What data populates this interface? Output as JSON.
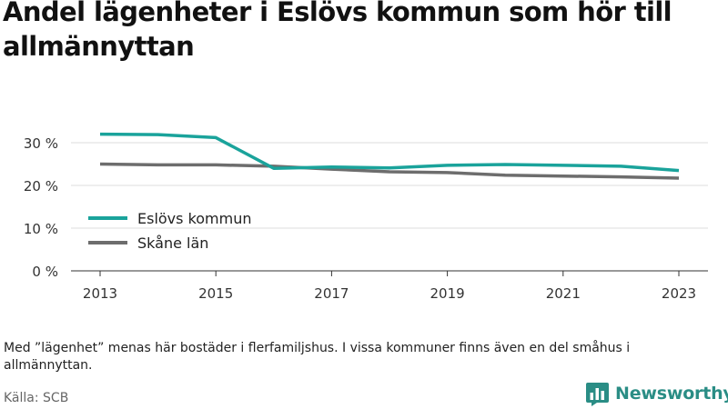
{
  "title": "Andel lägenheter i Eslövs kommun som hör till allmännyttan",
  "note": "Med ”lägenhet” menas här bostäder i flerfamiljshus. I vissa kommuner finns även en del småhus i allmännyttan.",
  "source": "Källa: SCB",
  "brand": {
    "name": "Newsworthy",
    "icon": "newsworthy-logo-icon",
    "color": "#2a8d85"
  },
  "chart_data": {
    "type": "line",
    "x": [
      2013,
      2014,
      2015,
      2016,
      2017,
      2018,
      2019,
      2020,
      2021,
      2022,
      2023
    ],
    "xticks": [
      "2013",
      "2015",
      "2017",
      "2019",
      "2021",
      "2023"
    ],
    "yticks": [
      "0 %",
      "10 %",
      "20 %",
      "30 %"
    ],
    "ylim": [
      0,
      30
    ],
    "grid": true,
    "legend_position": "left",
    "series": [
      {
        "name": "Eslövs kommun",
        "color": "#1aa39b",
        "values": [
          32.0,
          31.9,
          31.2,
          24.0,
          24.3,
          24.1,
          24.7,
          24.9,
          24.7,
          24.5,
          23.5
        ]
      },
      {
        "name": "Skåne län",
        "color": "#6d6d6d",
        "values": [
          25.0,
          24.8,
          24.8,
          24.5,
          23.8,
          23.2,
          23.0,
          22.4,
          22.2,
          22.0,
          21.7
        ]
      }
    ]
  }
}
